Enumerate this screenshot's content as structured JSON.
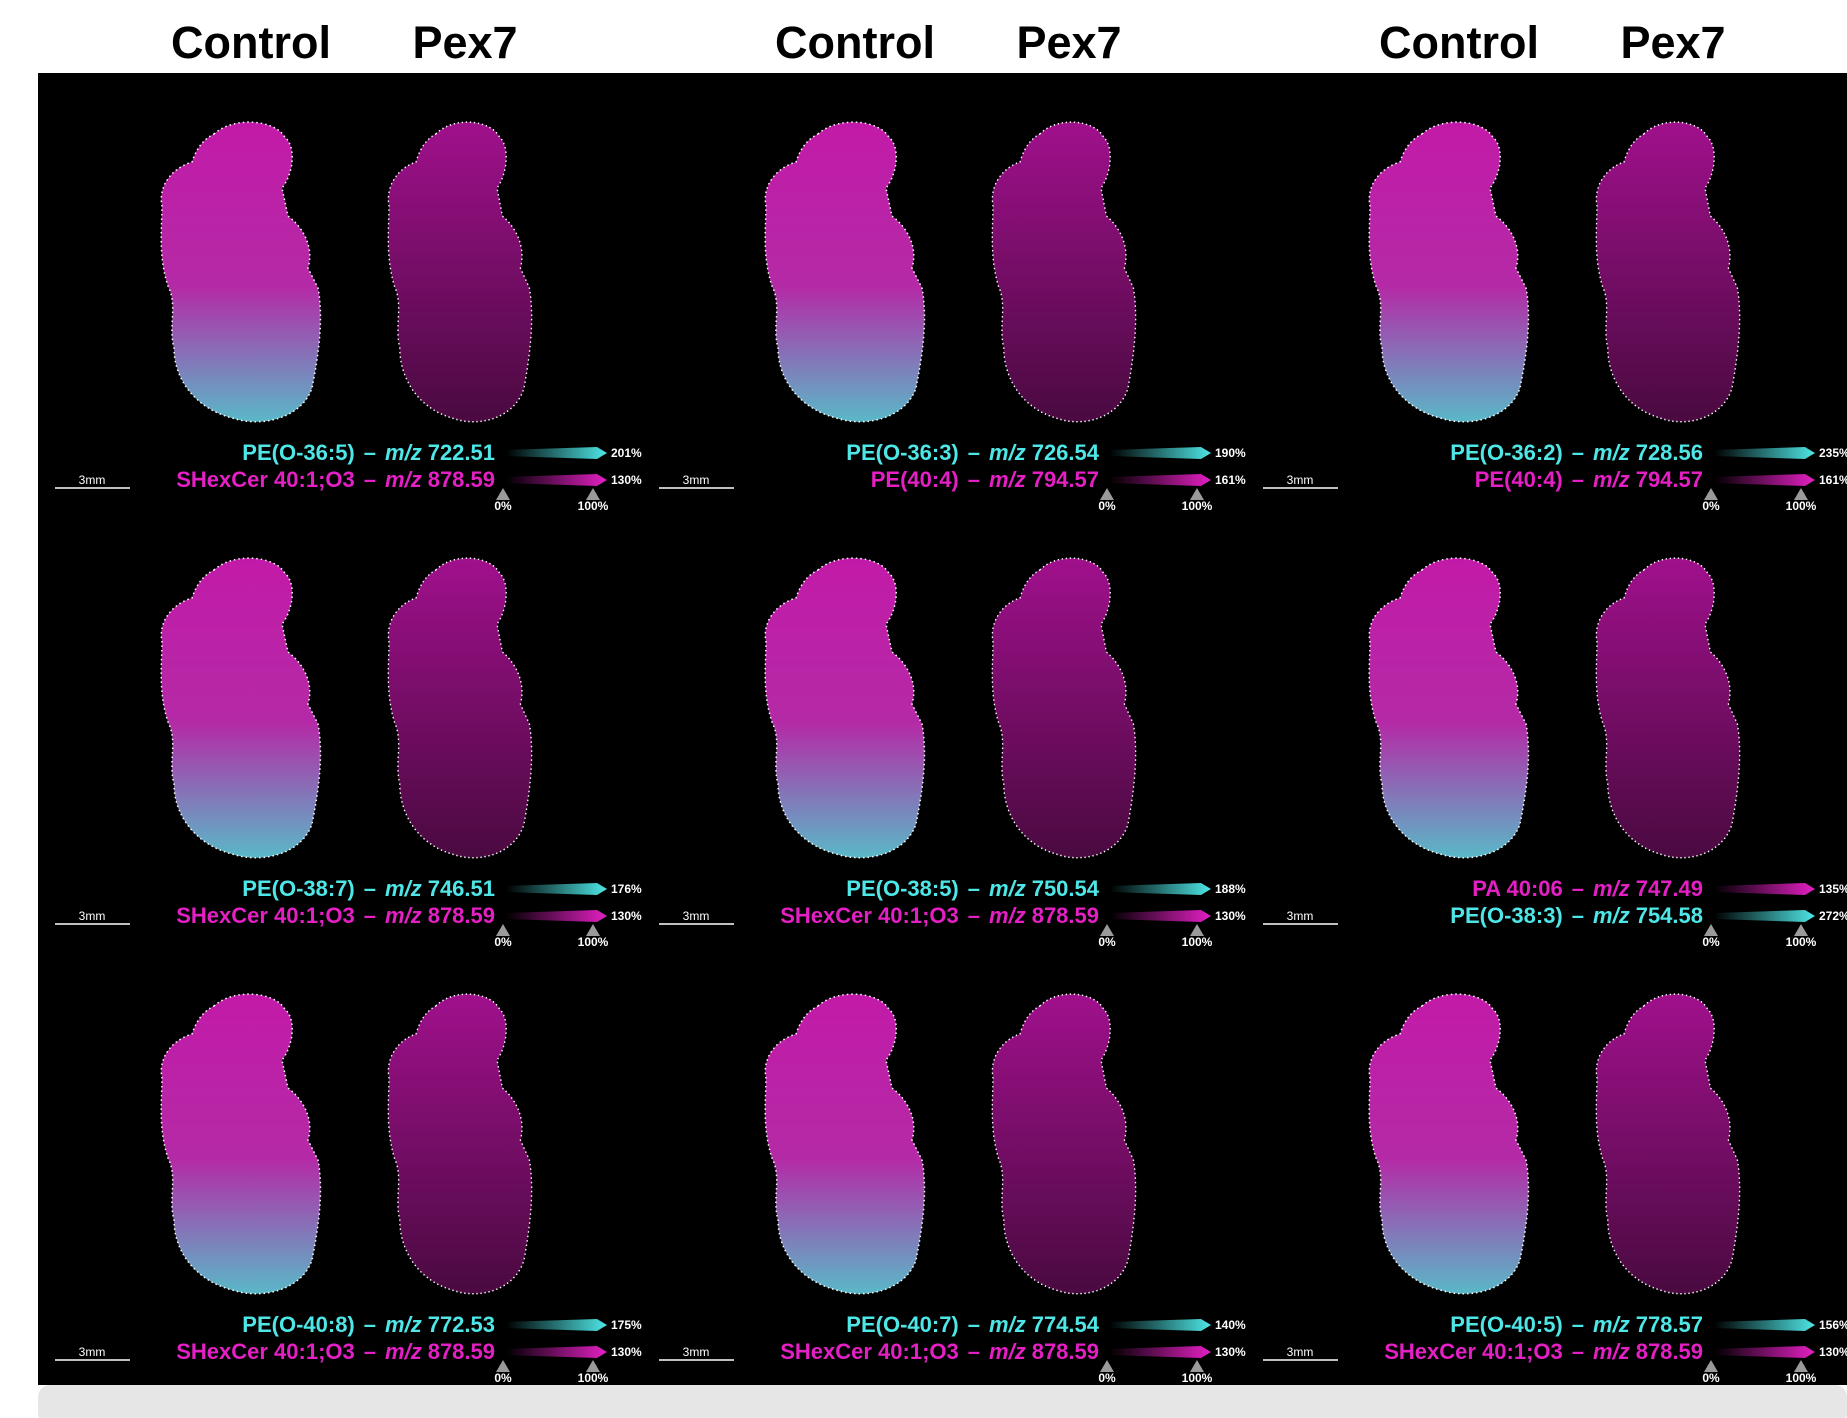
{
  "headers": [
    {
      "control": "Control",
      "pex7": "Pex7"
    },
    {
      "control": "Control",
      "pex7": "Pex7"
    },
    {
      "control": "Control",
      "pex7": "Pex7"
    }
  ],
  "panels": [
    {
      "scale": "3mm",
      "min": "0%",
      "mid": "100%",
      "lines": [
        {
          "name": "PE(O-36:5)",
          "sep": "–",
          "unit": "m/z",
          "mz": "722.51",
          "color": "#4ee6e6",
          "max": "201%"
        },
        {
          "name": "SHexCer 40:1;O3",
          "sep": "–",
          "unit": "m/z",
          "mz": "878.59",
          "color": "#e41fc4",
          "max": "130%"
        }
      ]
    },
    {
      "scale": "3mm",
      "min": "0%",
      "mid": "100%",
      "lines": [
        {
          "name": "PE(O-36:3)",
          "sep": "–",
          "unit": "m/z",
          "mz": "726.54",
          "color": "#4ee6e6",
          "max": "190%"
        },
        {
          "name": "PE(40:4)",
          "sep": "–",
          "unit": "m/z",
          "mz": "794.57",
          "color": "#e41fc4",
          "max": "161%"
        }
      ]
    },
    {
      "scale": "3mm",
      "min": "0%",
      "mid": "100%",
      "lines": [
        {
          "name": "PE(O-36:2)",
          "sep": "–",
          "unit": "m/z",
          "mz": "728.56",
          "color": "#4ee6e6",
          "max": "235%"
        },
        {
          "name": "PE(40:4)",
          "sep": "–",
          "unit": "m/z",
          "mz": "794.57",
          "color": "#e41fc4",
          "max": "161%"
        }
      ]
    },
    {
      "scale": "3mm",
      "min": "0%",
      "mid": "100%",
      "lines": [
        {
          "name": "PE(O-38:7)",
          "sep": "–",
          "unit": "m/z",
          "mz": "746.51",
          "color": "#4ee6e6",
          "max": "176%"
        },
        {
          "name": "SHexCer 40:1;O3",
          "sep": "–",
          "unit": "m/z",
          "mz": "878.59",
          "color": "#e41fc4",
          "max": "130%"
        }
      ]
    },
    {
      "scale": "3mm",
      "min": "0%",
      "mid": "100%",
      "lines": [
        {
          "name": "PE(O-38:5)",
          "sep": "–",
          "unit": "m/z",
          "mz": "750.54",
          "color": "#4ee6e6",
          "max": "188%"
        },
        {
          "name": "SHexCer 40:1;O3",
          "sep": "–",
          "unit": "m/z",
          "mz": "878.59",
          "color": "#e41fc4",
          "max": "130%"
        }
      ]
    },
    {
      "scale": "3mm",
      "min": "0%",
      "mid": "100%",
      "lines": [
        {
          "name": "PA 40:06",
          "sep": "–",
          "unit": "m/z",
          "mz": "747.49",
          "color": "#e41fc4",
          "max": "135%"
        },
        {
          "name": "PE(O-38:3)",
          "sep": "–",
          "unit": "m/z",
          "mz": "754.58",
          "color": "#4ee6e6",
          "max": "272%"
        }
      ]
    },
    {
      "scale": "3mm",
      "min": "0%",
      "mid": "100%",
      "lines": [
        {
          "name": "PE(O-40:8)",
          "sep": "–",
          "unit": "m/z",
          "mz": "772.53",
          "color": "#4ee6e6",
          "max": "175%"
        },
        {
          "name": "SHexCer 40:1;O3",
          "sep": "–",
          "unit": "m/z",
          "mz": "878.59",
          "color": "#e41fc4",
          "max": "130%"
        }
      ]
    },
    {
      "scale": "3mm",
      "min": "0%",
      "mid": "100%",
      "lines": [
        {
          "name": "PE(O-40:7)",
          "sep": "–",
          "unit": "m/z",
          "mz": "774.54",
          "color": "#4ee6e6",
          "max": "140%"
        },
        {
          "name": "SHexCer 40:1;O3",
          "sep": "–",
          "unit": "m/z",
          "mz": "878.59",
          "color": "#e41fc4",
          "max": "130%"
        }
      ]
    },
    {
      "scale": "3mm",
      "min": "0%",
      "mid": "100%",
      "lines": [
        {
          "name": "PE(O-40:5)",
          "sep": "–",
          "unit": "m/z",
          "mz": "778.57",
          "color": "#4ee6e6",
          "max": "156%"
        },
        {
          "name": "SHexCer 40:1;O3",
          "sep": "–",
          "unit": "m/z",
          "mz": "878.59",
          "color": "#e41fc4",
          "max": "130%"
        }
      ]
    }
  ]
}
